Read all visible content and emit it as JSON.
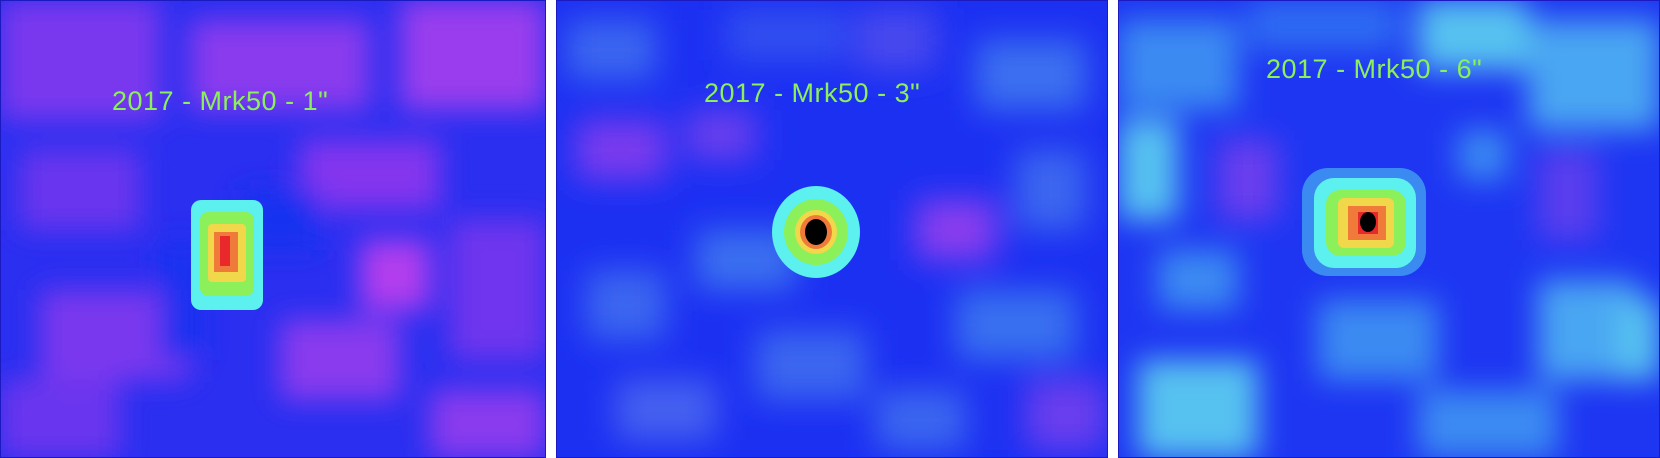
{
  "panels": [
    {
      "label": "2017 - Mrk50 - 1\"",
      "colormap": [
        "#1330f0",
        "#3d2cf0",
        "#7a38ee",
        "#aa3cee"
      ],
      "core_colors": [
        "#5cf0ee",
        "#8cf05a",
        "#f0d84a",
        "#f07a3a",
        "#e8282a"
      ]
    },
    {
      "label": "2017 - Mrk50 - 3\"",
      "colormap": [
        "#1b2ef2",
        "#2440f0",
        "#3a66f0",
        "#8a3cee"
      ],
      "core_colors": [
        "#5cf0ee",
        "#8cf05a",
        "#f0d84a",
        "#f07a3a",
        "#000000"
      ]
    },
    {
      "label": "2017 - Mrk50 - 6\"",
      "colormap": [
        "#1a32f2",
        "#2a5cf2",
        "#3b8af2",
        "#56c2f0"
      ],
      "core_colors": [
        "#5cf0ee",
        "#8cf05a",
        "#f0d84a",
        "#f07a3a",
        "#e8282a",
        "#000000"
      ]
    }
  ]
}
